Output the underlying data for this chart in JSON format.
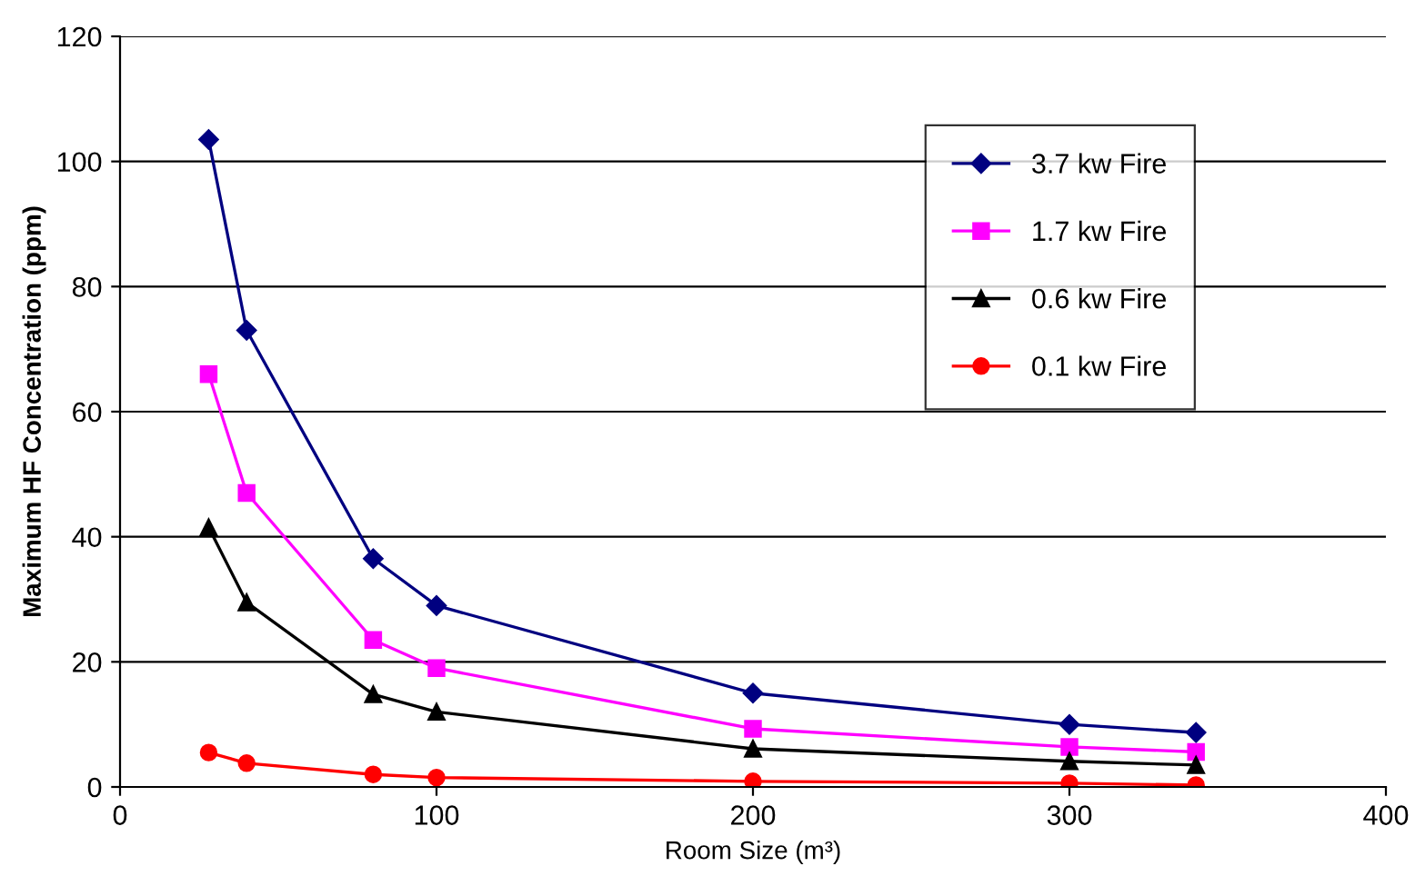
{
  "chart_data": {
    "type": "line",
    "xlabel": "Room Size (m³)",
    "ylabel": "Maximum HF Concentration (ppm)",
    "x": [
      28,
      40,
      80,
      100,
      200,
      300,
      340
    ],
    "series": [
      {
        "name": "3.7 kw Fire",
        "color": "#000080",
        "marker": "diamond",
        "values": [
          103.5,
          73,
          36.5,
          29,
          15,
          10,
          8.7
        ]
      },
      {
        "name": "1.7 kw Fire",
        "color": "#ff00ff",
        "marker": "square",
        "values": [
          66,
          47,
          23.5,
          19,
          9.3,
          6.4,
          5.6
        ]
      },
      {
        "name": "0.6 kw Fire",
        "color": "#000000",
        "marker": "triangle",
        "values": [
          41.5,
          29.5,
          14.8,
          12,
          6.1,
          4.1,
          3.5
        ]
      },
      {
        "name": "0.1 kw Fire",
        "color": "#ff0000",
        "marker": "circle",
        "values": [
          5.5,
          3.8,
          2,
          1.5,
          0.9,
          0.6,
          0.3
        ]
      }
    ],
    "xlim": [
      0,
      400
    ],
    "xticks": [
      0,
      100,
      200,
      300,
      400
    ],
    "ylim": [
      0,
      120
    ],
    "yticks": [
      0,
      20,
      40,
      60,
      80,
      100,
      120
    ],
    "grid": "y",
    "legend": "top right"
  }
}
